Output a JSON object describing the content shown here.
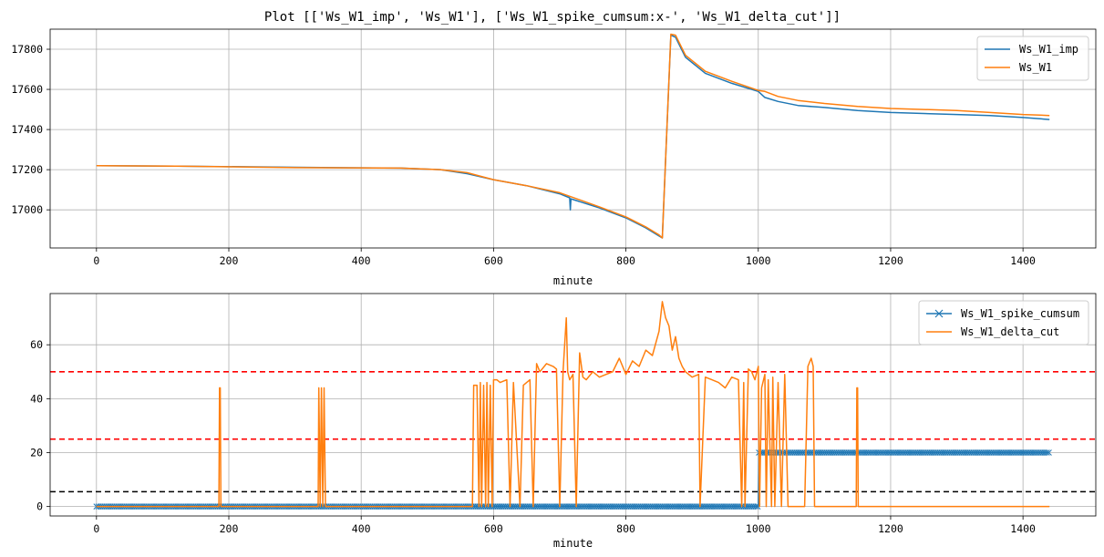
{
  "figure_title": "Plot [['Ws_W1_imp', 'Ws_W1'], ['Ws_W1_spike_cumsum:x-', 'Ws_W1_delta_cut']]",
  "colors": {
    "blue": "#1f77b4",
    "orange": "#ff7f0e",
    "red": "#ff0000",
    "black": "#000000",
    "grid": "#b0b0b0"
  },
  "chart_data": [
    {
      "type": "line",
      "xlabel": "minute",
      "ylabel": "",
      "xlim": [
        -70,
        1510
      ],
      "ylim": [
        16810,
        17900
      ],
      "xticks": [
        0,
        200,
        400,
        600,
        800,
        1000,
        1200,
        1400
      ],
      "yticks": [
        17000,
        17200,
        17400,
        17600,
        17800
      ],
      "grid": true,
      "legend": "top-right",
      "series": [
        {
          "name": "Ws_W1_imp",
          "color": "#1f77b4",
          "x": [
            0,
            120,
            300,
            460,
            520,
            560,
            600,
            650,
            700,
            715,
            716,
            717,
            760,
            800,
            830,
            850,
            855,
            860,
            868,
            875,
            890,
            920,
            960,
            1000,
            1010,
            1030,
            1060,
            1100,
            1150,
            1200,
            1250,
            1300,
            1350,
            1400,
            1440
          ],
          "y": [
            17220,
            17218,
            17212,
            17208,
            17200,
            17180,
            17150,
            17120,
            17080,
            17060,
            17000,
            17055,
            17010,
            16960,
            16910,
            16870,
            16860,
            17250,
            17870,
            17860,
            17760,
            17680,
            17630,
            17590,
            17560,
            17540,
            17520,
            17510,
            17495,
            17485,
            17480,
            17475,
            17470,
            17460,
            17450
          ]
        },
        {
          "name": "Ws_W1",
          "color": "#ff7f0e",
          "x": [
            0,
            120,
            300,
            460,
            520,
            560,
            600,
            650,
            700,
            760,
            800,
            830,
            850,
            855,
            860,
            868,
            875,
            890,
            920,
            960,
            1000,
            1010,
            1030,
            1060,
            1100,
            1150,
            1200,
            1250,
            1300,
            1350,
            1400,
            1440
          ],
          "y": [
            17220,
            17218,
            17210,
            17208,
            17200,
            17185,
            17150,
            17120,
            17085,
            17015,
            16965,
            16915,
            16875,
            16860,
            17250,
            17875,
            17870,
            17770,
            17690,
            17640,
            17595,
            17590,
            17565,
            17545,
            17530,
            17515,
            17505,
            17500,
            17495,
            17485,
            17475,
            17470
          ]
        }
      ]
    },
    {
      "type": "line",
      "xlabel": "minute",
      "ylabel": "",
      "xlim": [
        -70,
        1510
      ],
      "ylim": [
        -3.5,
        79
      ],
      "xticks": [
        0,
        200,
        400,
        600,
        800,
        1000,
        1200,
        1400
      ],
      "yticks": [
        0,
        20,
        40,
        60
      ],
      "grid": true,
      "legend": "top-right",
      "hlines": [
        {
          "y": 50,
          "color": "#ff0000",
          "style": "dashed"
        },
        {
          "y": 25,
          "color": "#ff0000",
          "style": "dashed"
        },
        {
          "y": 5.5,
          "color": "#000000",
          "style": "dashed"
        }
      ],
      "series": [
        {
          "name": "Ws_W1_spike_cumsum",
          "color": "#1f77b4",
          "marker": "x",
          "x": [
            0,
            1000,
            1001,
            1440
          ],
          "y": [
            0,
            0,
            20,
            20
          ]
        },
        {
          "name": "Ws_W1_delta_cut",
          "color": "#ff7f0e",
          "x": [
            0,
            185,
            186,
            187,
            188,
            335,
            336,
            338,
            340,
            342,
            344,
            346,
            568,
            570,
            575,
            578,
            580,
            582,
            585,
            588,
            590,
            592,
            595,
            598,
            600,
            605,
            610,
            620,
            625,
            630,
            640,
            645,
            655,
            660,
            665,
            670,
            680,
            690,
            695,
            700,
            705,
            710,
            712,
            715,
            720,
            725,
            730,
            735,
            740,
            750,
            760,
            770,
            780,
            790,
            800,
            810,
            820,
            830,
            840,
            850,
            855,
            860,
            865,
            870,
            875,
            880,
            885,
            890,
            900,
            910,
            912,
            920,
            930,
            940,
            950,
            960,
            970,
            975,
            978,
            980,
            985,
            990,
            995,
            1000,
            1002,
            1005,
            1010,
            1012,
            1015,
            1020,
            1022,
            1025,
            1030,
            1035,
            1040,
            1045,
            1070,
            1075,
            1080,
            1083,
            1085,
            1148,
            1149,
            1150,
            1151,
            1440
          ],
          "y": [
            0,
            0,
            44,
            44,
            0,
            0,
            44,
            0,
            44,
            0,
            44,
            0,
            0,
            45,
            45,
            0,
            46,
            0,
            45,
            0,
            46,
            0,
            45,
            0,
            47,
            47,
            46,
            47,
            0,
            46,
            0,
            45,
            47,
            0,
            53,
            50,
            53,
            52,
            51,
            0,
            50,
            70,
            50,
            47,
            49,
            0,
            57,
            48,
            47,
            50,
            48,
            49,
            50,
            55,
            49,
            54,
            52,
            58,
            56,
            65,
            76,
            70,
            67,
            58,
            63,
            55,
            52,
            50,
            48,
            49,
            0,
            48,
            47,
            46,
            44,
            48,
            47,
            0,
            46,
            0,
            51,
            50,
            47,
            52,
            0,
            44,
            49,
            0,
            47,
            0,
            48,
            0,
            46,
            0,
            49,
            0,
            0,
            52,
            55,
            52,
            0,
            0,
            44,
            44,
            0,
            0
          ]
        }
      ]
    }
  ]
}
